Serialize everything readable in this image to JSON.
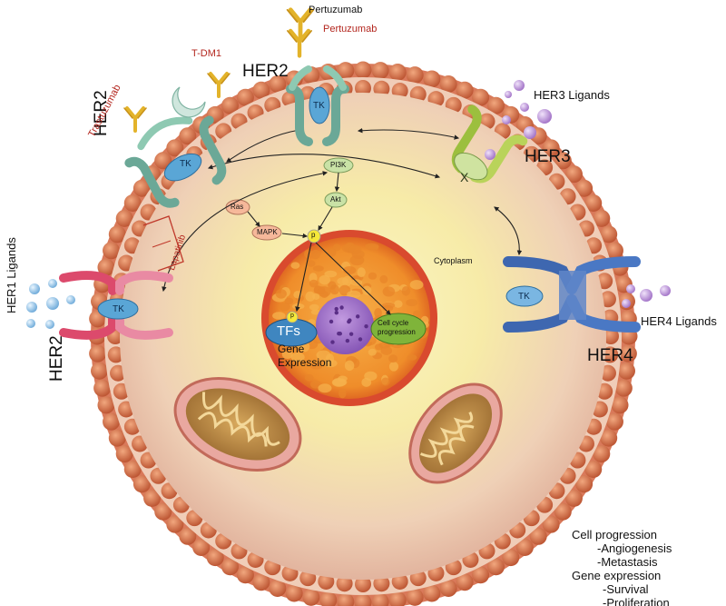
{
  "receptors": {
    "her2_top": "HER2",
    "her2_left_upper": "HER2",
    "her2_left_lower": "HER2",
    "her3": "HER3",
    "her4": "HER4"
  },
  "kinase": {
    "tk": "TK",
    "inactive": "X"
  },
  "drugs": {
    "pertuzumab_black": "Pertuzumab",
    "pertuzumab_red": "Pertuzumab",
    "tdm1": "T-DM1",
    "trastuzumab": "Trastuzumab",
    "lapatinib": "Lapatinib"
  },
  "ligands": {
    "her1": "HER1 Ligands",
    "her3": "HER3 Ligands",
    "her4": "HER4 Ligands"
  },
  "signaling": {
    "pi3k": "PI3K",
    "akt": "Akt",
    "ras": "Ras",
    "mapk": "MAPK",
    "p": "p"
  },
  "nucleus": {
    "tfs": "TFs",
    "gene": "Gene",
    "expression": "Expression",
    "cell_cycle_1": "Cell cycle",
    "cell_cycle_2": "progression"
  },
  "cytoplasm": "Cytoplasm",
  "legend": {
    "line1": "Cell progression",
    "line2": "-Angiogenesis",
    "line3": "-Metastasis",
    "line4": "Gene expression",
    "line5": "-Survival",
    "line6": "-Proliferation"
  },
  "colors": {
    "membrane_bead": "#c8643f",
    "membrane_inner": "#e8b89c",
    "cytoplasm_center": "#f6f0a8",
    "nucleus": "#f29a2e",
    "nucleus_rim": "#d64a2a",
    "nucleolus": "#9a6ac4",
    "her2_green": "#8ec9b2",
    "her1_pink": "#dc4a6c",
    "her3_lime": "#b9d35a",
    "her4_blue": "#4a78c4",
    "tk_blue": "#5aa6d6",
    "antibody_gold": "#e3b32a",
    "ligand_purple": "#b48ad0",
    "ligand_blue": "#8cc4ec",
    "mito": "#b48a4a"
  }
}
